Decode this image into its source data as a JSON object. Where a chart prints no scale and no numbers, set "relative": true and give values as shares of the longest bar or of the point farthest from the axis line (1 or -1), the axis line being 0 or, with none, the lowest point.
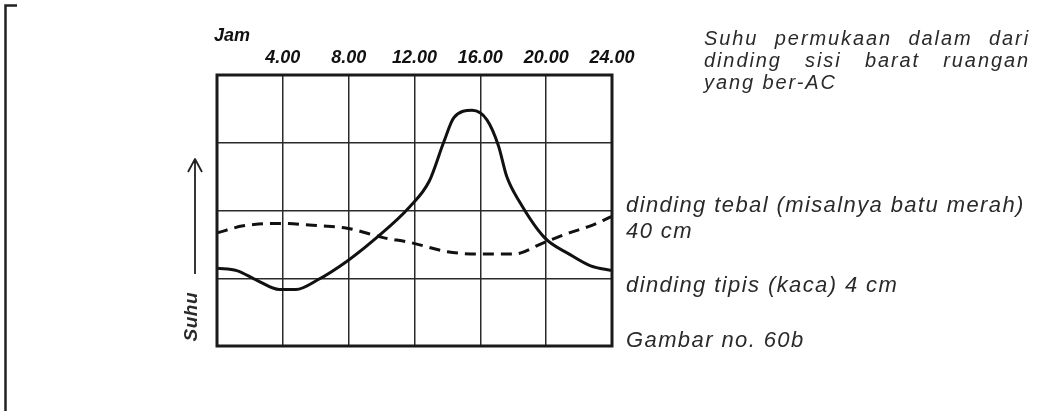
{
  "chart_data": {
    "type": "line",
    "title": "Suhu permukaan dalam dari dinding sisi barat ruangan yang ber-AC",
    "xlabel": "Jam",
    "ylabel": "Suhu",
    "relative": true,
    "xlim": [
      0,
      24
    ],
    "xticks": [
      {
        "value": 4,
        "label": "4.00"
      },
      {
        "value": 8,
        "label": "8.00"
      },
      {
        "value": 12,
        "label": "12.00"
      },
      {
        "value": 16,
        "label": "16.00"
      },
      {
        "value": 20,
        "label": "20.00"
      },
      {
        "value": 24,
        "label": "24.00"
      }
    ],
    "tick_labels": "x",
    "grid": true,
    "series": [
      {
        "name": "dinding tebal (misalnya batu merah) 40 cm",
        "color": "#111111",
        "line_style": "dashed",
        "x": [
          0,
          1.6,
          3.8,
          6.3,
          7.9,
          10.1,
          11.7,
          14,
          15.9,
          18,
          19.9,
          21.4,
          22.7,
          24
        ],
        "values": [
          0.48,
          0.51,
          0.52,
          0.51,
          0.5,
          0.46,
          0.44,
          0.4,
          0.39,
          0.39,
          0.44,
          0.48,
          0.51,
          0.55
        ]
      },
      {
        "name": "dinding tipis (kaca) 4 cm",
        "color": "#111111",
        "line_style": "solid",
        "x": [
          0,
          1.2,
          2.4,
          3.8,
          4.8,
          6.1,
          7.9,
          9.7,
          11.7,
          12.9,
          13.8,
          14.4,
          15.5,
          16.4,
          17.1,
          17.6,
          18.4,
          19.9,
          21.4,
          22.7,
          24
        ],
        "values": [
          0.33,
          0.32,
          0.28,
          0.24,
          0.24,
          0.28,
          0.36,
          0.46,
          0.59,
          0.7,
          0.87,
          0.97,
          1,
          0.96,
          0.85,
          0.72,
          0.61,
          0.46,
          0.39,
          0.34,
          0.32
        ]
      }
    ],
    "annotations": [
      "Gambar no. 60b"
    ]
  }
}
